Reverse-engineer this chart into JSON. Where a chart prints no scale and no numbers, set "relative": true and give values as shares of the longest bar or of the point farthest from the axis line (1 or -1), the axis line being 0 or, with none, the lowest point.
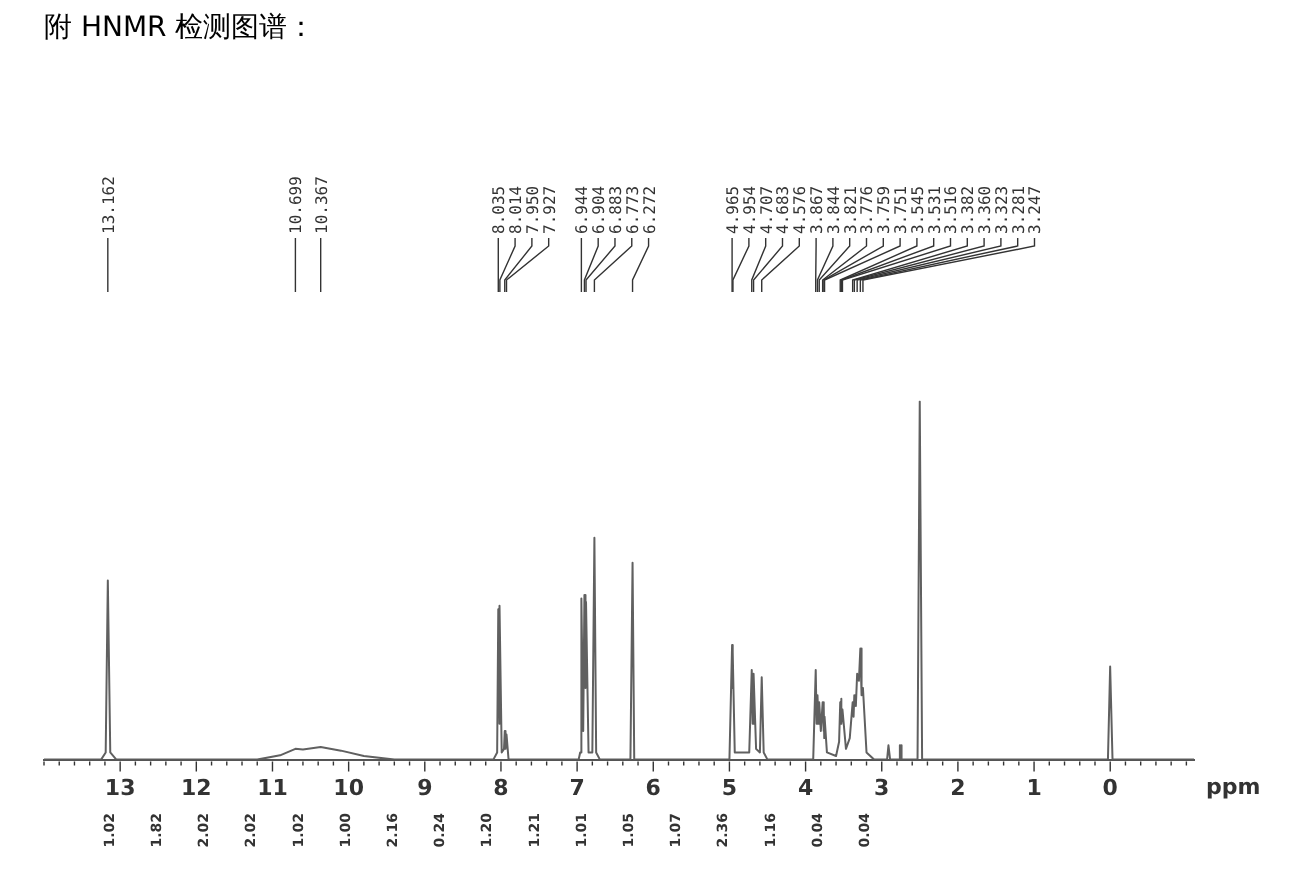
{
  "chart_data": {
    "type": "line",
    "title": "附 HNMR 检测图谱：",
    "xlabel": "ppm",
    "relative": true,
    "color": "#606060",
    "marker": "none",
    "grid": false,
    "legend": false,
    "xlim": [
      14,
      -1.1
    ],
    "xticks": [
      13,
      12,
      11,
      10,
      9,
      8,
      7,
      6,
      5,
      4,
      3,
      2,
      1,
      0
    ],
    "x": [
      14,
      13.25,
      13.19,
      13.162,
      13.13,
      13.05,
      11.2,
      10.9,
      10.699,
      10.6,
      10.367,
      10.1,
      9.8,
      9.4,
      8.1,
      8.05,
      8.035,
      8.024,
      8.014,
      7.99,
      7.96,
      7.95,
      7.94,
      7.927,
      7.9,
      6.98,
      6.96,
      6.944,
      6.92,
      6.904,
      6.89,
      6.883,
      6.85,
      6.8,
      6.773,
      6.75,
      6.7,
      6.3,
      6.272,
      6.25,
      5,
      4.965,
      4.96,
      4.954,
      4.93,
      4.74,
      4.707,
      4.695,
      4.683,
      4.65,
      4.6,
      4.576,
      4.55,
      4.5,
      3.9,
      3.867,
      3.855,
      3.844,
      3.83,
      3.821,
      3.8,
      3.776,
      3.765,
      3.759,
      3.755,
      3.751,
      3.72,
      3.6,
      3.56,
      3.545,
      3.538,
      3.531,
      3.523,
      3.516,
      3.47,
      3.42,
      3.382,
      3.37,
      3.36,
      3.34,
      3.323,
      3.3,
      3.281,
      3.265,
      3.247,
      3.2,
      3.1,
      2.93,
      2.912,
      2.908,
      2.89,
      2.78,
      2.762,
      2.758,
      2.74,
      2.53,
      2.501,
      2.499,
      2.47,
      0.03,
      0.001,
      -0.001,
      -0.03,
      -1.1
    ],
    "values": [
      0,
      0,
      0.02,
      0.5,
      0.02,
      0,
      0,
      0.012,
      0.03,
      0.028,
      0.035,
      0.025,
      0.01,
      0,
      0,
      0.02,
      0.42,
      0.1,
      0.43,
      0.02,
      0.03,
      0.08,
      0.03,
      0.07,
      0,
      0,
      0.02,
      0.45,
      0.08,
      0.46,
      0.2,
      0.44,
      0.02,
      0.02,
      0.62,
      0.02,
      0,
      0,
      0.55,
      0,
      0,
      0.32,
      0.2,
      0.3,
      0.02,
      0.02,
      0.25,
      0.1,
      0.24,
      0.03,
      0.02,
      0.23,
      0.02,
      0,
      0,
      0.25,
      0.1,
      0.18,
      0.1,
      0.16,
      0.08,
      0.16,
      0.08,
      0.15,
      0.06,
      0.12,
      0.02,
      0.01,
      0.05,
      0.16,
      0.1,
      0.17,
      0.1,
      0.14,
      0.03,
      0.06,
      0.16,
      0.12,
      0.18,
      0.15,
      0.24,
      0.22,
      0.31,
      0.18,
      0.2,
      0.02,
      0,
      0,
      0.04,
      0.04,
      0,
      0,
      0.04,
      0.04,
      0,
      0,
      1,
      1,
      0,
      0,
      0.26,
      0.26,
      0,
      0
    ],
    "annotations": [
      "13.162",
      "10.699",
      "10.367",
      "8.035",
      "8.014",
      "7.950",
      "7.927",
      "6.944",
      "6.904",
      "6.883",
      "6.773",
      "6.272",
      "4.965",
      "4.954",
      "4.707",
      "4.683",
      "4.576",
      "3.867",
      "3.844",
      "3.821",
      "3.776",
      "3.759",
      "3.751",
      "3.545",
      "3.531",
      "3.516",
      "3.382",
      "3.360",
      "3.323",
      "3.281",
      "3.247",
      "1.02",
      "1.82",
      "2.02",
      "2.02",
      "1.02",
      "1.00",
      "2.16",
      "0.24",
      "1.20",
      "1.21",
      "1.01",
      "1.05",
      "1.07",
      "2.36",
      "1.16",
      "0.04",
      "0.04"
    ]
  }
}
